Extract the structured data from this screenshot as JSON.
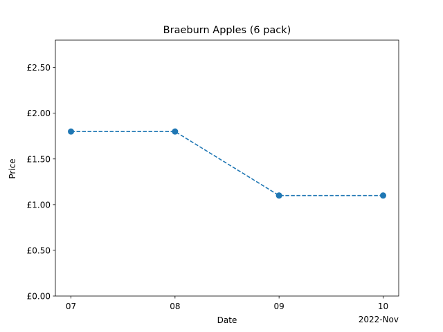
{
  "chart_data": {
    "type": "line",
    "title": "Braeburn Apples (6 pack)",
    "xlabel": "Date",
    "ylabel": "Price",
    "x_offset_label": "2022-Nov",
    "categories": [
      "07",
      "08",
      "09",
      "10"
    ],
    "dates": [
      "2022-11-07",
      "2022-11-08",
      "2022-11-09",
      "2022-11-10"
    ],
    "values": [
      1.8,
      1.8,
      1.1,
      1.1
    ],
    "yticks": [
      0.0,
      0.5,
      1.0,
      1.5,
      2.0,
      2.5
    ],
    "ytick_labels": [
      "£0.00",
      "£0.50",
      "£1.00",
      "£1.50",
      "£2.00",
      "£2.50"
    ],
    "ylim": [
      0,
      2.8
    ],
    "line_style": "dashed",
    "marker": "circle",
    "color": "#1f77b4",
    "grid": false
  }
}
